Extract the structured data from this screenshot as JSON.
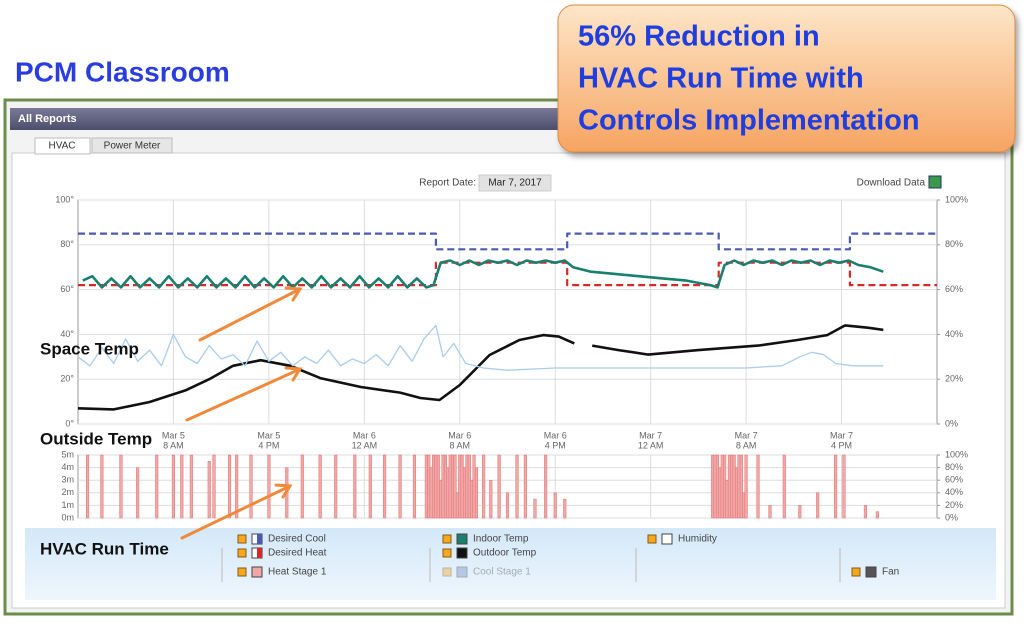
{
  "page": {
    "title": "PCM Classroom",
    "callout": [
      "56% Reduction in",
      "HVAC Run Time with",
      "Controls Implementation"
    ],
    "panel_title": "All Reports",
    "tabs": [
      "HVAC",
      "Power Meter"
    ],
    "report_date_label": "Report Date:",
    "report_date": "Mar 7, 2017",
    "download": "Download Data"
  },
  "chart_data": [
    {
      "type": "line",
      "annotations": [
        "Space Temp",
        "Outside Temp"
      ],
      "xlim": [
        0,
        72
      ],
      "xticks": [
        {
          "value": 8,
          "label": [
            "Mar 5",
            "8 AM"
          ]
        },
        {
          "value": 16,
          "label": [
            "Mar 5",
            "4 PM"
          ]
        },
        {
          "value": 24,
          "label": [
            "Mar 6",
            "12 AM"
          ]
        },
        {
          "value": 32,
          "label": [
            "Mar 6",
            "8 AM"
          ]
        },
        {
          "value": 40,
          "label": [
            "Mar 6",
            "4 PM"
          ]
        },
        {
          "value": 48,
          "label": [
            "Mar 7",
            "12 AM"
          ]
        },
        {
          "value": 56,
          "label": [
            "Mar 7",
            "8 AM"
          ]
        },
        {
          "value": 64,
          "label": [
            "Mar 7",
            "4 PM"
          ]
        }
      ],
      "ylim": [
        0,
        100
      ],
      "yticks": [
        {
          "value": 0,
          "label": "0°"
        },
        {
          "value": 20,
          "label": "20°"
        },
        {
          "value": 40,
          "label": "40°"
        },
        {
          "value": 60,
          "label": "60°"
        },
        {
          "value": 80,
          "label": "80°"
        },
        {
          "value": 100,
          "label": "100°"
        }
      ],
      "y2lim": [
        0,
        100
      ],
      "y2ticks": [
        {
          "value": 0,
          "label": "0%"
        },
        {
          "value": 20,
          "label": "20%"
        },
        {
          "value": 40,
          "label": "40%"
        },
        {
          "value": 60,
          "label": "60%"
        },
        {
          "value": 80,
          "label": "80%"
        },
        {
          "value": 100,
          "label": "100%"
        }
      ],
      "grid": true,
      "series": [
        {
          "name": "Desired Cool",
          "color": "#4b5ab0",
          "dashed": true,
          "x": [
            0,
            30,
            30,
            41,
            41,
            53.7,
            53.7,
            64.7,
            64.7,
            72
          ],
          "values": [
            85,
            85,
            78,
            78,
            85,
            85,
            78,
            78,
            85,
            85
          ]
        },
        {
          "name": "Desired Heat",
          "color": "#d42a2a",
          "dashed": true,
          "x": [
            0,
            30,
            30,
            41,
            41,
            53.7,
            53.7,
            64.7,
            64.7,
            72
          ],
          "values": [
            62,
            62,
            72,
            72,
            62,
            62,
            72,
            72,
            62,
            62
          ]
        },
        {
          "name": "Indoor Temp",
          "color": "#1a7f6e",
          "x": [
            0.4,
            1.2,
            2.0,
            2.8,
            3.6,
            4.4,
            5.2,
            6.0,
            6.8,
            7.6,
            8.4,
            9.2,
            10.0,
            10.8,
            11.6,
            12.4,
            13.2,
            14.0,
            14.8,
            15.6,
            16.4,
            17.2,
            18.0,
            18.8,
            19.6,
            20.4,
            21.2,
            22.0,
            22.8,
            23.6,
            24.4,
            25.2,
            26.0,
            26.8,
            27.6,
            28.4,
            29.2,
            29.8,
            30.4,
            31.2,
            32,
            32.8,
            33.6,
            34.4,
            35.2,
            36,
            36.8,
            37.6,
            38.4,
            39.2,
            40,
            40.8,
            41.5,
            43,
            45,
            47,
            49,
            51,
            53,
            53.6,
            54.2,
            55,
            55.8,
            56.6,
            57.4,
            58.2,
            59,
            59.8,
            60.6,
            61.4,
            62.2,
            63,
            63.8,
            64.6,
            65.4,
            66.4,
            67.5
          ],
          "values": [
            64,
            66,
            61,
            65,
            61,
            66,
            61,
            65,
            61,
            66,
            61,
            65,
            61,
            66,
            61,
            65,
            61,
            66,
            61,
            65,
            61,
            66,
            61,
            65,
            61,
            66,
            61,
            65,
            61,
            66,
            61,
            65,
            61,
            66,
            61,
            65,
            61,
            62,
            72,
            73,
            71,
            73,
            71,
            73,
            72,
            73,
            71,
            73,
            72,
            73,
            72,
            73,
            70,
            68,
            67,
            66,
            65,
            64,
            62,
            61,
            71,
            73,
            71,
            73,
            72,
            73,
            71,
            73,
            72,
            73,
            71,
            73,
            72,
            73,
            71,
            70,
            68
          ]
        },
        {
          "name": "Outdoor Temp",
          "color": "#111111",
          "x": [
            0,
            3,
            6,
            9,
            11,
            13,
            15.3,
            17.8,
            20.3,
            23.7,
            27,
            28.7,
            30.3,
            32,
            34.5,
            37,
            39,
            40.3,
            41.6,
            42.3,
            43.1,
            45.3,
            47.8,
            52,
            57,
            60.3,
            62.8,
            64.3,
            66.2,
            67.5
          ],
          "values": [
            7,
            6.5,
            9.8,
            15,
            20,
            26,
            28.5,
            26,
            20.5,
            16.5,
            14,
            11.6,
            10.7,
            17.4,
            30.8,
            37.5,
            39.7,
            39,
            36,
            null,
            35,
            33,
            31,
            33,
            35,
            37.5,
            39.7,
            44,
            43,
            42
          ]
        },
        {
          "name": "Humidity",
          "color": "#a9cdee",
          "axis": "y2",
          "x": [
            0,
            1,
            2,
            3,
            4,
            5,
            6,
            7,
            8,
            9,
            10,
            11,
            12,
            13,
            14,
            15,
            16,
            17,
            18,
            19,
            20,
            21,
            22,
            23,
            24,
            25,
            26,
            27,
            28,
            29,
            30,
            30.6,
            31.5,
            32.5,
            34,
            36,
            40,
            44,
            48,
            52,
            56,
            59,
            60.5,
            61.5,
            62.5,
            63.5,
            65,
            67.5
          ],
          "values": [
            30,
            26,
            34,
            27,
            38,
            28,
            33,
            26,
            40,
            30,
            27,
            35,
            29,
            31,
            26,
            37,
            28,
            32,
            26,
            30,
            27,
            33,
            26,
            29,
            27,
            31,
            26,
            35,
            28,
            38,
            44,
            30,
            36,
            27,
            25,
            24,
            25,
            25,
            25,
            25,
            25,
            26,
            30,
            32,
            31,
            27,
            26,
            26
          ]
        }
      ]
    },
    {
      "type": "bar",
      "annotations": [
        "HVAC Run Time"
      ],
      "xlim": [
        0,
        72
      ],
      "xticks": [
        8,
        16,
        24,
        32,
        40,
        48,
        56,
        64
      ],
      "ylim": [
        0,
        5
      ],
      "yticks": [
        {
          "value": 0,
          "label": "0m"
        },
        {
          "value": 1,
          "label": "1m"
        },
        {
          "value": 2,
          "label": "2m"
        },
        {
          "value": 3,
          "label": "3m"
        },
        {
          "value": 4,
          "label": "4m"
        },
        {
          "value": 5,
          "label": "5m"
        }
      ],
      "y2lim": [
        0,
        100
      ],
      "y2ticks": [
        {
          "value": 0,
          "label": "0%"
        },
        {
          "value": 20,
          "label": "20%"
        },
        {
          "value": 40,
          "label": "40%"
        },
        {
          "value": 60,
          "label": "60%"
        },
        {
          "value": 80,
          "label": "80%"
        },
        {
          "value": 100,
          "label": "100%"
        }
      ],
      "grid": true,
      "series": [
        {
          "name": "Heat Stage 1",
          "color": "#f2a7a7",
          "x": [
            0.8,
            2,
            3.6,
            5,
            6.6,
            8,
            8.7,
            9.5,
            11,
            11.4,
            12.7,
            13.3,
            14.5,
            16,
            17.5,
            18.8,
            20.3,
            21.6,
            23.2,
            24.5,
            25.7,
            27,
            28.2,
            29.2,
            29.4,
            29.6,
            29.8,
            30,
            30.2,
            30.4,
            30.6,
            30.8,
            31,
            31.2,
            31.4,
            31.6,
            31.8,
            32,
            32.2,
            32.4,
            32.6,
            32.8,
            33,
            33.2,
            33.4,
            34,
            34.6,
            35.3,
            36,
            36.8,
            37.5,
            38.3,
            39.2,
            40,
            40.8,
            53.2,
            53.4,
            53.6,
            53.8,
            54,
            54.2,
            54.4,
            54.6,
            54.8,
            55,
            55.2,
            55.4,
            55.6,
            55.8,
            56,
            57,
            58,
            59.2,
            60.5,
            62,
            63.5,
            64.2,
            66,
            67
          ],
          "values": [
            5,
            5,
            5,
            4,
            5,
            5,
            5,
            5,
            4.5,
            5,
            5,
            5,
            5,
            5,
            4,
            5,
            5,
            5,
            5,
            5,
            5,
            5,
            5,
            5,
            5,
            4,
            5,
            5,
            5,
            3,
            5,
            5,
            4,
            5,
            5,
            5,
            2,
            5,
            5,
            4,
            5,
            5,
            3,
            5,
            4,
            5,
            3,
            5,
            2,
            5,
            5,
            1.5,
            5,
            2,
            1.5,
            5,
            5,
            5,
            4,
            5,
            5,
            3,
            5,
            5,
            5,
            4,
            5,
            5,
            2,
            5,
            5,
            1,
            5,
            1,
            2,
            5,
            5,
            1,
            0.5
          ]
        },
        {
          "name": "Cool Stage 1",
          "color": "#6f8fc8",
          "enabled": false,
          "x": [],
          "values": []
        },
        {
          "name": "Fan",
          "color": "#555555",
          "x": [],
          "values": []
        }
      ]
    }
  ]
}
